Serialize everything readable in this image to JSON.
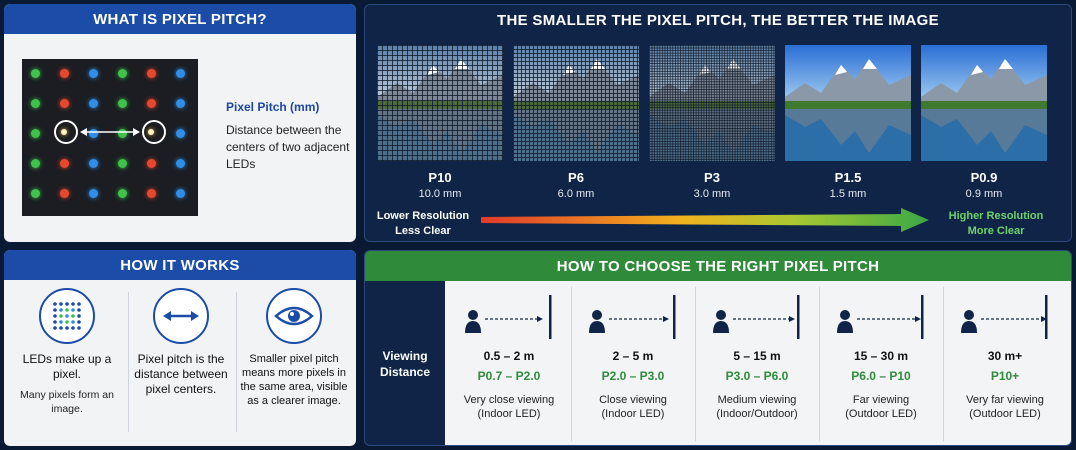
{
  "panel_pitch": {
    "title": "WHAT IS PIXEL PITCH?",
    "label": "Pixel Pitch (mm)",
    "description": "Distance between the centers of two adjacent LEDs"
  },
  "panel_compare": {
    "title": "THE SMALLER THE PIXEL PITCH, THE BETTER THE IMAGE",
    "items": [
      {
        "pitch": "P10",
        "mm": "10.0 mm"
      },
      {
        "pitch": "P6",
        "mm": "6.0 mm"
      },
      {
        "pitch": "P3",
        "mm": "3.0 mm"
      },
      {
        "pitch": "P1.5",
        "mm": "1.5 mm"
      },
      {
        "pitch": "P0.9",
        "mm": "0.9 mm"
      }
    ],
    "low_line1": "Lower Resolution",
    "low_line2": "Less Clear",
    "high_line1": "Higher Resolution",
    "high_line2": "More Clear"
  },
  "panel_how": {
    "title": "HOW IT WORKS",
    "items": [
      {
        "icon": "led-grid-icon",
        "main": "LEDs make up a pixel.",
        "sub": "Many pixels form an image."
      },
      {
        "icon": "double-arrow-icon",
        "main": "Pixel pitch is the distance between pixel centers.",
        "sub": ""
      },
      {
        "icon": "eye-icon",
        "main": "",
        "sub": "Smaller pixel pitch means more pixels in the same area, visible as a clearer image."
      }
    ]
  },
  "panel_choose": {
    "title": "HOW TO CHOOSE THE RIGHT PIXEL PITCH",
    "row_label_1": "Viewing",
    "row_label_2": "Distance",
    "items": [
      {
        "distance": "0.5 – 2 m",
        "range": "P0.7 – P2.0",
        "use1": "Very close viewing",
        "use2": "(Indoor LED)"
      },
      {
        "distance": "2 – 5 m",
        "range": "P2.0 – P3.0",
        "use1": "Close viewing",
        "use2": "(Indoor LED)"
      },
      {
        "distance": "5 – 15 m",
        "range": "P3.0 – P6.0",
        "use1": "Medium viewing",
        "use2": "(Indoor/Outdoor)"
      },
      {
        "distance": "15 – 30 m",
        "range": "P6.0 – P10",
        "use1": "Far viewing",
        "use2": "(Outdoor LED)"
      },
      {
        "distance": "30 m+",
        "range": "P10+",
        "use1": "Very far viewing",
        "use2": "(Outdoor LED)"
      }
    ]
  },
  "colors": {
    "blue": "#1a4ca8",
    "green": "#2f8a3a",
    "navy": "#0f2446"
  }
}
